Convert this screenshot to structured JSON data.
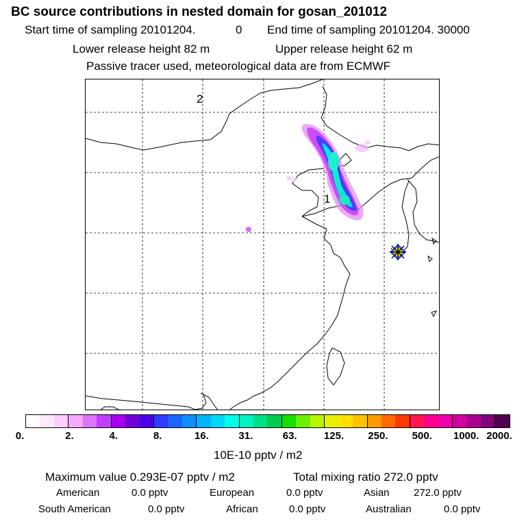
{
  "header": {
    "title": "BC  source contributions in nested domain for gosan_201012",
    "start_label": "Start time of sampling 20101204.",
    "start_hour": "0",
    "end_label": "End time of sampling 20101204. 30000",
    "lower_release": "Lower release height   82 m",
    "upper_release": "Upper release height   62 m",
    "tracer_note": "Passive tracer used, meteorological data are from ECMWF"
  },
  "map": {
    "marker_labels": [
      "2",
      "1"
    ],
    "receptor_icon": "star-receptor-icon"
  },
  "colorbar": {
    "colors": [
      "#ffffff",
      "#ffe8ff",
      "#ffcdff",
      "#f3a9ff",
      "#dc74ff",
      "#c43cff",
      "#a700f0",
      "#7000d8",
      "#4a00e8",
      "#2e3cff",
      "#1a64ff",
      "#0f8fff",
      "#00b4ff",
      "#00d8ff",
      "#00ffe8",
      "#00f2c0",
      "#00e08a",
      "#00cc4c",
      "#14e000",
      "#6af000",
      "#b8f400",
      "#e8f000",
      "#ffe000",
      "#ffc000",
      "#ff9a00",
      "#ff6a00",
      "#ff3a00",
      "#ff1650",
      "#ff0090",
      "#f000a8",
      "#d000a0",
      "#a80090",
      "#800078",
      "#500050"
    ],
    "tick_labels": [
      "0.",
      "2.",
      "4.",
      "8.",
      "16.",
      "31.",
      "63.",
      "125.",
      "250.",
      "500.",
      "1000.",
      "2000."
    ],
    "unit": "10E-10 pptv / m2"
  },
  "summary": {
    "max_value": "Maximum value  0.293E-07 pptv / m2",
    "total_mixing": "Total mixing ratio     272.0 pptv",
    "regions": [
      {
        "name": "American",
        "value": "0.0 pptv"
      },
      {
        "name": "European",
        "value": "0.0 pptv"
      },
      {
        "name": "Asian",
        "value": "272.0 pptv"
      },
      {
        "name": "South American",
        "value": "0.0 pptv"
      },
      {
        "name": "African",
        "value": "0.0 pptv"
      },
      {
        "name": "Australian",
        "value": "0.0 pptv"
      }
    ]
  }
}
